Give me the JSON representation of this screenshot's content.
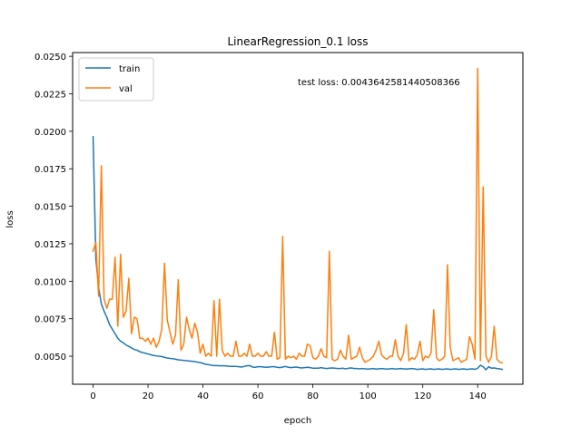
{
  "chart_data": {
    "type": "line",
    "title": "LinearRegression_0.1 loss",
    "xlabel": "epoch",
    "ylabel": "loss",
    "xlim": [
      -7.45,
      156.45
    ],
    "ylim": [
      0.00313,
      0.02525
    ],
    "xticks": [
      0,
      20,
      40,
      60,
      80,
      100,
      120,
      140
    ],
    "xtick_labels": [
      "0",
      "20",
      "40",
      "60",
      "80",
      "100",
      "120",
      "140"
    ],
    "yticks": [
      0.005,
      0.0075,
      0.01,
      0.0125,
      0.015,
      0.0175,
      0.02,
      0.0225,
      0.025
    ],
    "ytick_labels": [
      "0.0050",
      "0.0075",
      "0.0100",
      "0.0125",
      "0.0150",
      "0.0175",
      "0.0200",
      "0.0225",
      "0.0250"
    ],
    "grid": false,
    "legend_position": "top-left",
    "annotation": "test loss: 0.004364258144050836​6",
    "series": [
      {
        "name": "train",
        "color": "#1f77b4",
        "values": [
          0.01965,
          0.0115,
          0.0096,
          0.0085,
          0.008,
          0.0076,
          0.0071,
          0.0068,
          0.0065,
          0.0062,
          0.006,
          0.0059,
          0.00575,
          0.00565,
          0.00555,
          0.00545,
          0.0054,
          0.0053,
          0.00525,
          0.0052,
          0.00515,
          0.0051,
          0.00505,
          0.00502,
          0.005,
          0.00498,
          0.00492,
          0.00488,
          0.00485,
          0.00484,
          0.0048,
          0.00476,
          0.00474,
          0.00472,
          0.0047,
          0.00468,
          0.00466,
          0.00464,
          0.0046,
          0.00458,
          0.00452,
          0.00446,
          0.00444,
          0.0044,
          0.00438,
          0.00438,
          0.00436,
          0.00436,
          0.00436,
          0.00434,
          0.00432,
          0.00432,
          0.00432,
          0.0043,
          0.00428,
          0.00432,
          0.00436,
          0.00438,
          0.00428,
          0.00426,
          0.0043,
          0.0043,
          0.00428,
          0.00426,
          0.00428,
          0.0043,
          0.0043,
          0.00426,
          0.00424,
          0.00428,
          0.00432,
          0.00426,
          0.00424,
          0.00426,
          0.00428,
          0.00424,
          0.00422,
          0.00424,
          0.00426,
          0.00424,
          0.0042,
          0.0042,
          0.0042,
          0.00424,
          0.0042,
          0.00418,
          0.0042,
          0.00422,
          0.0042,
          0.00418,
          0.00418,
          0.0042,
          0.00416,
          0.0042,
          0.00422,
          0.00418,
          0.00418,
          0.00416,
          0.00418,
          0.00416,
          0.00414,
          0.00416,
          0.00418,
          0.00414,
          0.00416,
          0.00418,
          0.00416,
          0.00414,
          0.00416,
          0.00418,
          0.00414,
          0.00416,
          0.00418,
          0.00416,
          0.00414,
          0.00416,
          0.00418,
          0.00416,
          0.00412,
          0.00414,
          0.00416,
          0.00412,
          0.00414,
          0.00416,
          0.00412,
          0.00414,
          0.00416,
          0.00412,
          0.00414,
          0.00416,
          0.00412,
          0.00414,
          0.00416,
          0.00412,
          0.00414,
          0.00416,
          0.00412,
          0.00414,
          0.00416,
          0.00412,
          0.0042,
          0.0044,
          0.0043,
          0.0041,
          0.0043,
          0.0042,
          0.00422,
          0.00418,
          0.00416,
          0.00412
        ]
      },
      {
        "name": "val",
        "color": "#ff7f0e",
        "values": [
          0.012,
          0.0126,
          0.009,
          0.0177,
          0.0088,
          0.0082,
          0.0088,
          0.0088,
          0.0116,
          0.007,
          0.0118,
          0.0076,
          0.008,
          0.0102,
          0.0065,
          0.0076,
          0.0075,
          0.0062,
          0.0062,
          0.006,
          0.0062,
          0.0058,
          0.0062,
          0.0056,
          0.006,
          0.0068,
          0.0112,
          0.0074,
          0.0066,
          0.0058,
          0.0064,
          0.0101,
          0.0054,
          0.0058,
          0.0076,
          0.0068,
          0.0062,
          0.0072,
          0.0066,
          0.0052,
          0.0058,
          0.005,
          0.0052,
          0.005,
          0.0087,
          0.005,
          0.0088,
          0.0054,
          0.005,
          0.0052,
          0.005,
          0.005,
          0.006,
          0.005,
          0.005,
          0.0052,
          0.005,
          0.0058,
          0.005,
          0.005,
          0.0052,
          0.005,
          0.005,
          0.0053,
          0.005,
          0.005,
          0.0066,
          0.0048,
          0.0049,
          0.013,
          0.0048,
          0.005,
          0.0049,
          0.005,
          0.0048,
          0.0052,
          0.005,
          0.005,
          0.0058,
          0.0057,
          0.0049,
          0.0048,
          0.005,
          0.0055,
          0.005,
          0.0049,
          0.012,
          0.0048,
          0.0047,
          0.0048,
          0.0054,
          0.005,
          0.0048,
          0.0064,
          0.0048,
          0.0049,
          0.005,
          0.0056,
          0.0049,
          0.0046,
          0.0047,
          0.0048,
          0.005,
          0.0054,
          0.006,
          0.0051,
          0.0049,
          0.0048,
          0.005,
          0.005,
          0.0061,
          0.005,
          0.0047,
          0.0052,
          0.0071,
          0.0047,
          0.0049,
          0.0048,
          0.0051,
          0.006,
          0.0047,
          0.005,
          0.0049,
          0.0052,
          0.0081,
          0.0049,
          0.0047,
          0.0048,
          0.005,
          0.0111,
          0.0056,
          0.0047,
          0.0048,
          0.0049,
          0.0046,
          0.0047,
          0.0048,
          0.0063,
          0.0058,
          0.0048,
          0.0242,
          0.0047,
          0.0163,
          0.005,
          0.0046,
          0.005,
          0.007,
          0.0048,
          0.0046,
          0.00455
        ]
      }
    ]
  }
}
